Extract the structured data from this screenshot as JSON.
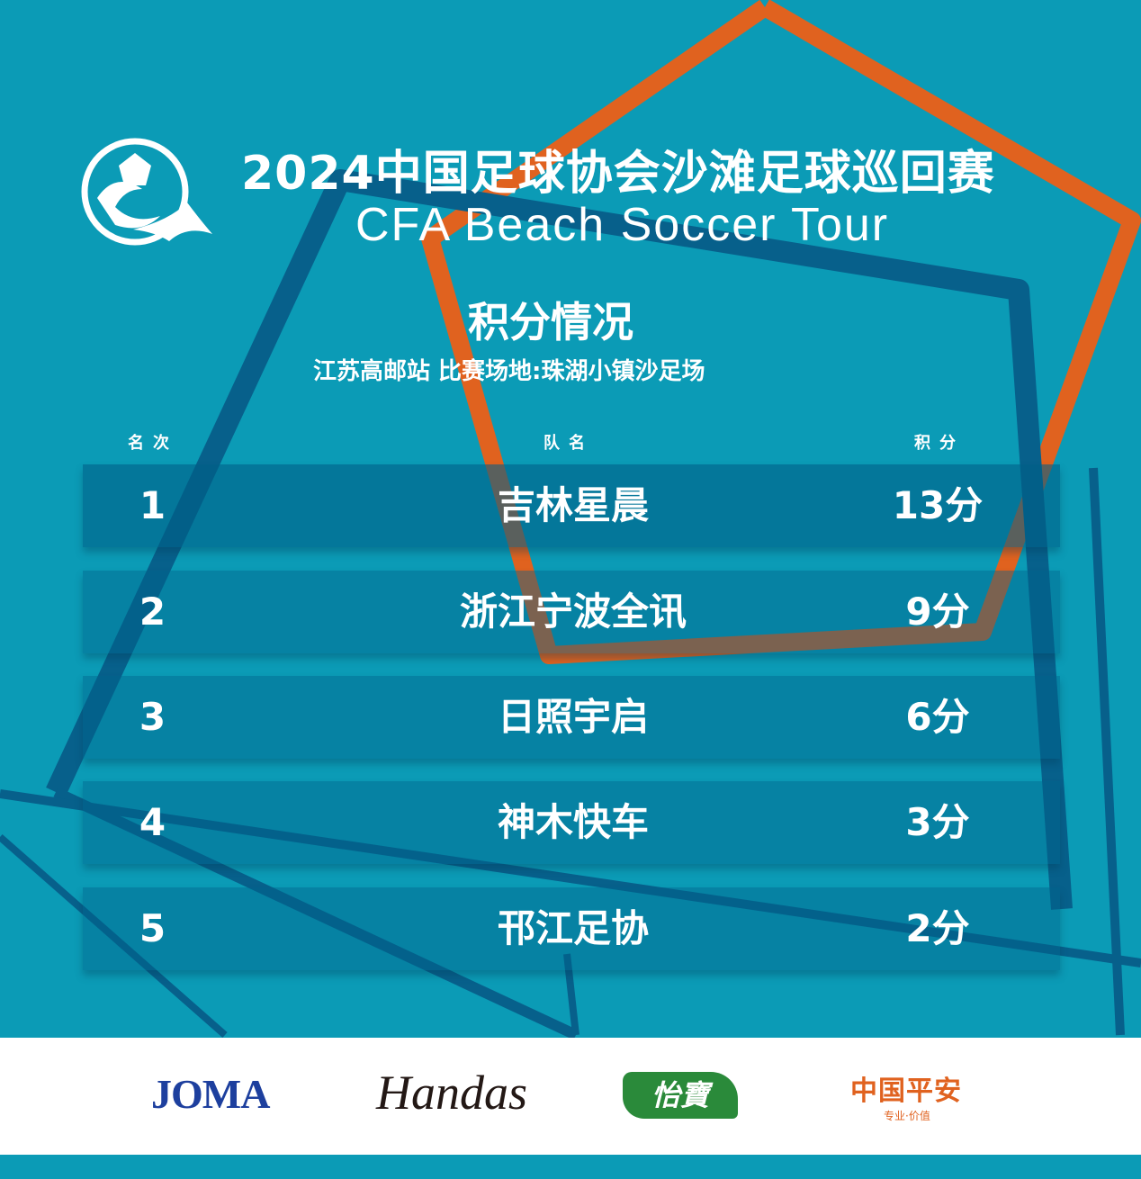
{
  "header": {
    "title_cn": "2024中国足球协会沙滩足球巡回赛",
    "title_en": "CFA Beach Soccer Tour",
    "section_title": "积分情况",
    "venue": "江苏高邮站  比赛场地:珠湖小镇沙足场"
  },
  "table": {
    "columns": [
      "名次",
      "队名",
      "积分"
    ],
    "rows": [
      {
        "rank": "1",
        "team": "吉林星晨",
        "points": "13分"
      },
      {
        "rank": "2",
        "team": "浙江宁波全讯",
        "points": "9分"
      },
      {
        "rank": "3",
        "team": "日照宇启",
        "points": "6分"
      },
      {
        "rank": "4",
        "team": "神木快车",
        "points": "3分"
      },
      {
        "rank": "5",
        "team": "邗江足协",
        "points": "2分"
      }
    ]
  },
  "sponsors": [
    {
      "name": "JOMA",
      "color": "#1d3f9e"
    },
    {
      "name": "Handas",
      "color": "#231815"
    },
    {
      "name": "怡寶",
      "color": "#2a8a3a"
    },
    {
      "name": "中国平安",
      "tagline": "专业·价值",
      "color": "#e0621f"
    }
  ],
  "colors": {
    "background": "#0b9bb6",
    "dark_line": "#07608b",
    "orange_line": "#e0621f"
  }
}
